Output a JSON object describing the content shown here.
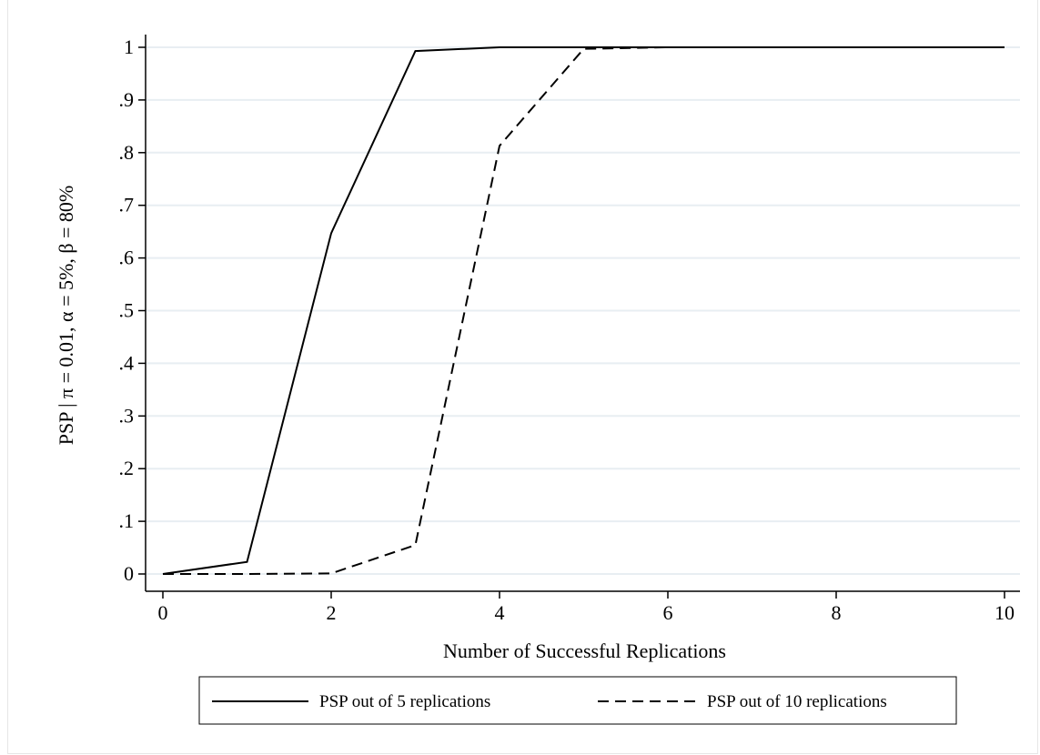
{
  "chart_data": {
    "type": "line",
    "xlabel": "Number of Successful Replications",
    "ylabel": "PSP | π = 0.01, α = 5%, β = 80%",
    "xlim": [
      0,
      10
    ],
    "ylim": [
      0,
      1
    ],
    "x_ticks": [
      0,
      2,
      4,
      6,
      8,
      10
    ],
    "x_tick_labels": [
      "0",
      "2",
      "4",
      "6",
      "8",
      "10"
    ],
    "y_ticks": [
      0,
      0.1,
      0.2,
      0.3,
      0.4,
      0.5,
      0.6,
      0.7,
      0.8,
      0.9,
      1
    ],
    "y_tick_labels": [
      "0",
      ".1",
      ".2",
      ".3",
      ".4",
      ".5",
      ".6",
      ".7",
      ".8",
      ".9",
      "1"
    ],
    "grid": "horizontal",
    "legend_position": "bottom",
    "series": [
      {
        "name": "PSP out of 5 replications",
        "style": "solid",
        "x": [
          0,
          1,
          2,
          3,
          4,
          5,
          6,
          7,
          8,
          9,
          10
        ],
        "y": [
          0,
          0.023,
          0.647,
          0.993,
          1,
          1,
          1,
          1,
          1,
          1,
          1
        ]
      },
      {
        "name": "PSP out of 10 replications",
        "style": "dashed",
        "x": [
          0,
          1,
          2,
          3,
          4,
          5,
          6,
          7,
          8,
          9,
          10
        ],
        "y": [
          0,
          0,
          0.001,
          0.055,
          0.813,
          0.997,
          1,
          1,
          1,
          1,
          1
        ]
      }
    ],
    "colors": {
      "line": "#000000",
      "grid": "#e8eef2",
      "axis": "#000000"
    }
  }
}
